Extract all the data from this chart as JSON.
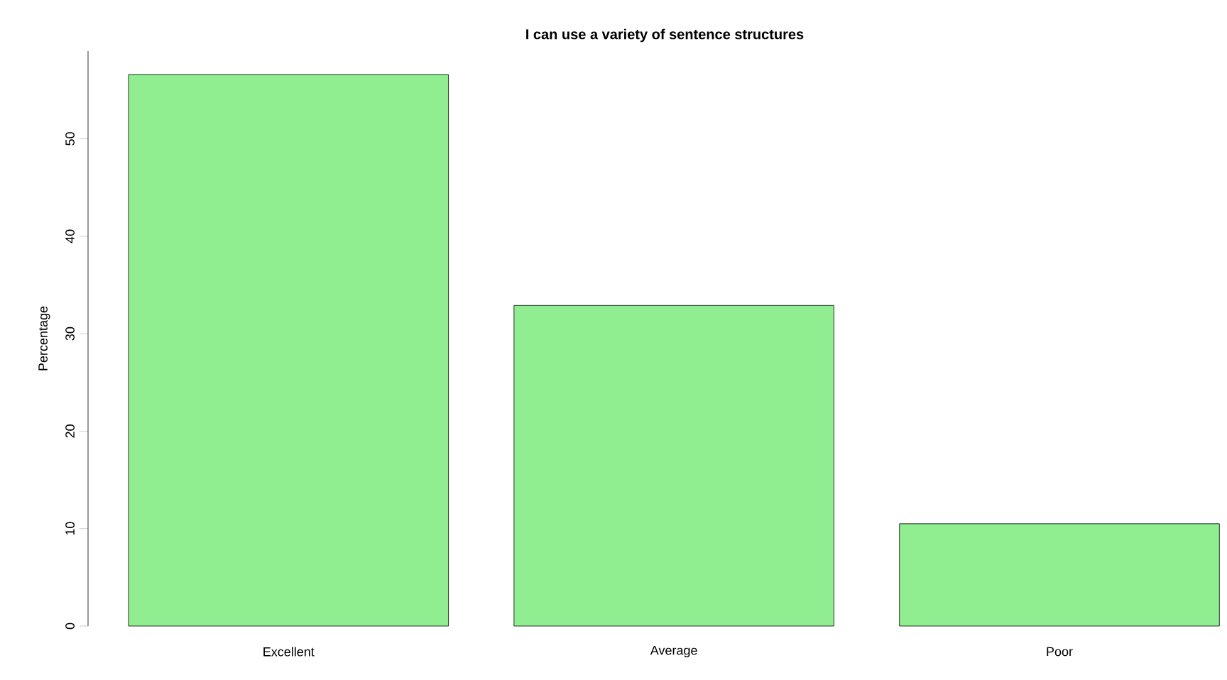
{
  "chart_data": {
    "type": "bar",
    "title": "I can use a variety of sentence structures",
    "ylabel": "Percentage",
    "categories": [
      "Excellent",
      "Average",
      "Poor"
    ],
    "values": [
      56.6,
      32.9,
      10.5
    ],
    "color": "#90ee90",
    "ylim": [
      0,
      59
    ],
    "yticks": [
      0,
      10,
      20,
      30,
      40,
      50
    ]
  }
}
